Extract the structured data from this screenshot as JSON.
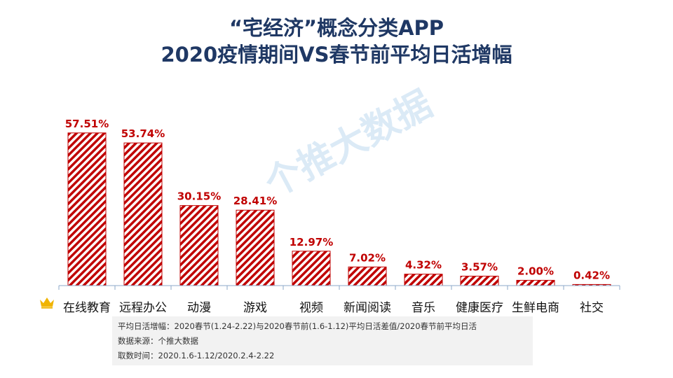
{
  "title_line1": "“宅经济”概念分类APP",
  "title_line2": "2020疫情期间VS春节前平均日活增幅",
  "watermark_text": "个推大数据",
  "notes": {
    "definition": "平均日活增幅：2020春节(1.24-2.22)与2020春节前(1.6-1.12)平均日活差值/2020春节前平均日活",
    "source": "数据来源：个推大数据",
    "period": "取数时间：2020.1.6-1.12/2020.2.4-2.22"
  },
  "colors": {
    "title": "#1f3864",
    "bar_stripe": "#c00000",
    "label": "#c00000",
    "axis": "#8ea9c8",
    "crown": "#f0b400"
  },
  "icons": {
    "crown": "crown-icon"
  },
  "chart_data": {
    "type": "bar",
    "categories": [
      "在线教育",
      "远程办公",
      "动漫",
      "游戏",
      "视频",
      "新闻阅读",
      "音乐",
      "健康医疗",
      "生鲜电商",
      "社交"
    ],
    "values": [
      57.51,
      53.74,
      30.15,
      28.41,
      12.97,
      7.02,
      4.32,
      3.57,
      2.0,
      0.42
    ],
    "value_labels": [
      "57.51%",
      "53.74%",
      "30.15%",
      "28.41%",
      "12.97%",
      "7.02%",
      "4.32%",
      "3.57%",
      "2.00%",
      "0.42%"
    ],
    "title": "“宅经济”概念分类APP 2020疫情期间VS春节前平均日活增幅",
    "xlabel": "",
    "ylabel": "",
    "ylim": [
      0,
      60
    ],
    "grid": false,
    "legend": "none"
  }
}
